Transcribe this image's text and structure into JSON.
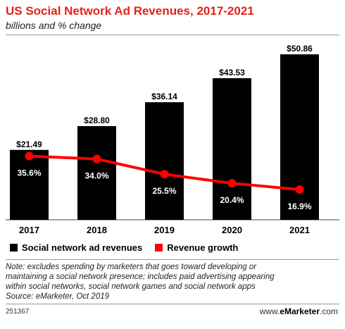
{
  "chart_data": {
    "type": "bar",
    "title": "US Social Network Ad Revenues, 2017-2021",
    "subtitle": "billions and % change",
    "categories": [
      "2017",
      "2018",
      "2019",
      "2020",
      "2021"
    ],
    "ylim": [
      0,
      55
    ],
    "y2lim": [
      0,
      100
    ],
    "series": [
      {
        "name": "Social network ad revenues",
        "type": "bar",
        "color": "#000000",
        "values": [
          21.49,
          28.8,
          36.14,
          43.53,
          50.86
        ],
        "labels": [
          "$21.49",
          "$28.80",
          "$36.14",
          "$43.53",
          "$50.86"
        ]
      },
      {
        "name": "Revenue growth",
        "type": "line",
        "color": "#ff0000",
        "values": [
          35.6,
          34.0,
          25.5,
          20.4,
          16.9
        ],
        "labels": [
          "35.6%",
          "34.0%",
          "25.5%",
          "20.4%",
          "16.9%"
        ]
      }
    ],
    "legend_position": "bottom"
  },
  "note": [
    "Note: excludes spending by marketers that goes toward developing or",
    "maintaining a social network presence; includes paid advertising appearing",
    "within social networks, social network games and social network apps",
    "Source: eMarketer, Oct 2019"
  ],
  "chart_id": "251367",
  "brand": {
    "prefix": "www.",
    "name": "eMarketer",
    "suffix": ".com"
  }
}
